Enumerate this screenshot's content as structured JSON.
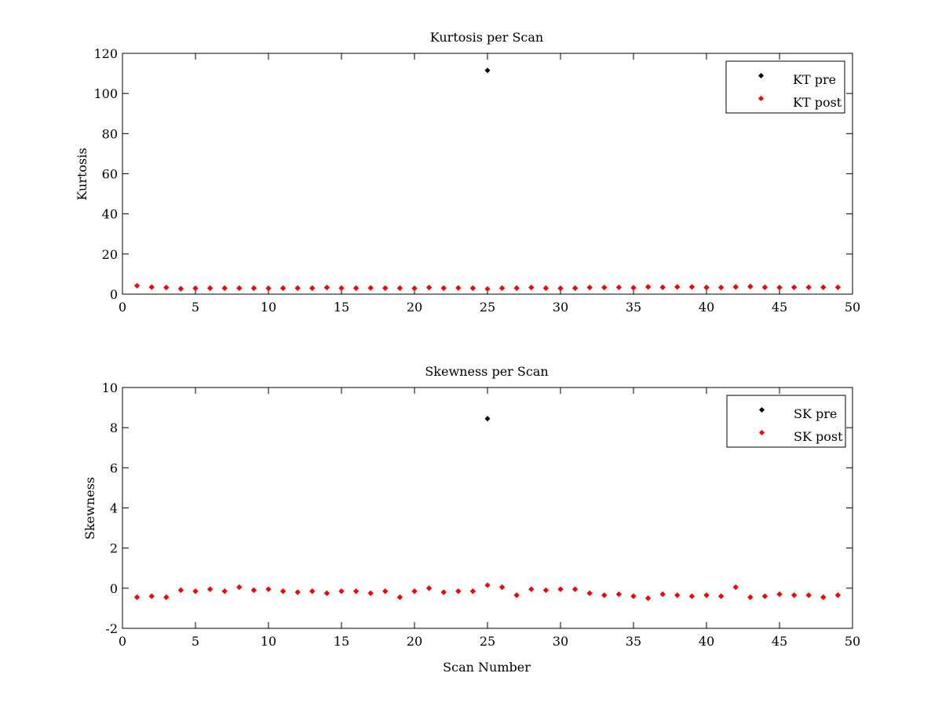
{
  "chart_data": [
    {
      "type": "scatter",
      "title": "Kurtosis per Scan",
      "xlabel": "",
      "ylabel": "Kurtosis",
      "xlim": [
        0,
        50
      ],
      "ylim": [
        0,
        120
      ],
      "xticks": [
        0,
        5,
        10,
        15,
        20,
        25,
        30,
        35,
        40,
        45,
        50
      ],
      "yticks": [
        0,
        20,
        40,
        60,
        80,
        100,
        120
      ],
      "grid": false,
      "legend_position": "top-right",
      "series": [
        {
          "name": "KT pre",
          "color": "#000000",
          "x": [
            1,
            2,
            3,
            4,
            5,
            6,
            7,
            8,
            9,
            10,
            11,
            12,
            13,
            14,
            15,
            16,
            17,
            18,
            19,
            20,
            21,
            22,
            23,
            24,
            25,
            26,
            27,
            28,
            29,
            30,
            31,
            32,
            33,
            34,
            35,
            36,
            37,
            38,
            39,
            40,
            41,
            42,
            43,
            44,
            45,
            46,
            47,
            48,
            49
          ],
          "y": [
            4.2,
            3.5,
            3.3,
            2.7,
            2.9,
            3.0,
            3.0,
            3.0,
            3.0,
            2.9,
            3.0,
            3.0,
            3.0,
            3.3,
            3.0,
            3.0,
            3.1,
            3.0,
            3.0,
            2.9,
            3.3,
            3.0,
            3.1,
            3.0,
            111.5,
            3.0,
            3.0,
            3.3,
            3.0,
            2.9,
            3.0,
            3.3,
            3.3,
            3.4,
            3.2,
            3.6,
            3.4,
            3.6,
            3.6,
            3.3,
            3.3,
            3.6,
            3.8,
            3.4,
            3.3,
            3.4,
            3.4,
            3.4,
            3.4
          ]
        },
        {
          "name": "KT post",
          "color": "#ff0000",
          "x": [
            1,
            2,
            3,
            4,
            5,
            6,
            7,
            8,
            9,
            10,
            11,
            12,
            13,
            14,
            15,
            16,
            17,
            18,
            19,
            20,
            21,
            22,
            23,
            24,
            25,
            26,
            27,
            28,
            29,
            30,
            31,
            32,
            33,
            34,
            35,
            36,
            37,
            38,
            39,
            40,
            41,
            42,
            43,
            44,
            45,
            46,
            47,
            48,
            49
          ],
          "y": [
            4.2,
            3.5,
            3.3,
            2.7,
            2.9,
            3.0,
            3.0,
            3.0,
            3.0,
            2.9,
            3.0,
            3.0,
            3.0,
            3.3,
            3.0,
            3.0,
            3.1,
            3.0,
            3.0,
            2.9,
            3.3,
            3.0,
            3.1,
            3.0,
            2.6,
            3.0,
            3.0,
            3.3,
            3.0,
            2.9,
            3.0,
            3.3,
            3.3,
            3.4,
            3.2,
            3.6,
            3.4,
            3.6,
            3.6,
            3.3,
            3.3,
            3.6,
            3.8,
            3.4,
            3.3,
            3.4,
            3.4,
            3.4,
            3.4
          ]
        }
      ]
    },
    {
      "type": "scatter",
      "title": "Skewness per Scan",
      "xlabel": "Scan Number",
      "ylabel": "Skewness",
      "xlim": [
        0,
        50
      ],
      "ylim": [
        -2,
        10
      ],
      "xticks": [
        0,
        5,
        10,
        15,
        20,
        25,
        30,
        35,
        40,
        45,
        50
      ],
      "yticks": [
        -2,
        0,
        2,
        4,
        6,
        8,
        10
      ],
      "grid": false,
      "legend_position": "top-right",
      "series": [
        {
          "name": "SK pre",
          "color": "#000000",
          "x": [
            1,
            2,
            3,
            4,
            5,
            6,
            7,
            8,
            9,
            10,
            11,
            12,
            13,
            14,
            15,
            16,
            17,
            18,
            19,
            20,
            21,
            22,
            23,
            24,
            25,
            26,
            27,
            28,
            29,
            30,
            31,
            32,
            33,
            34,
            35,
            36,
            37,
            38,
            39,
            40,
            41,
            42,
            43,
            44,
            45,
            46,
            47,
            48,
            49
          ],
          "y": [
            -0.45,
            -0.4,
            -0.45,
            -0.1,
            -0.15,
            -0.05,
            -0.15,
            0.05,
            -0.1,
            -0.05,
            -0.15,
            -0.2,
            -0.15,
            -0.25,
            -0.15,
            -0.15,
            -0.25,
            -0.15,
            -0.45,
            -0.15,
            0.0,
            -0.2,
            -0.15,
            -0.15,
            8.45,
            0.05,
            -0.35,
            -0.05,
            -0.1,
            -0.05,
            -0.05,
            -0.25,
            -0.35,
            -0.3,
            -0.4,
            -0.5,
            -0.3,
            -0.35,
            -0.4,
            -0.35,
            -0.4,
            0.05,
            -0.45,
            -0.4,
            -0.3,
            -0.35,
            -0.35,
            -0.45,
            -0.35
          ]
        },
        {
          "name": "SK post",
          "color": "#ff0000",
          "x": [
            1,
            2,
            3,
            4,
            5,
            6,
            7,
            8,
            9,
            10,
            11,
            12,
            13,
            14,
            15,
            16,
            17,
            18,
            19,
            20,
            21,
            22,
            23,
            24,
            25,
            26,
            27,
            28,
            29,
            30,
            31,
            32,
            33,
            34,
            35,
            36,
            37,
            38,
            39,
            40,
            41,
            42,
            43,
            44,
            45,
            46,
            47,
            48,
            49
          ],
          "y": [
            -0.45,
            -0.4,
            -0.45,
            -0.1,
            -0.15,
            -0.05,
            -0.15,
            0.05,
            -0.1,
            -0.05,
            -0.15,
            -0.2,
            -0.15,
            -0.25,
            -0.15,
            -0.15,
            -0.25,
            -0.15,
            -0.45,
            -0.15,
            0.0,
            -0.2,
            -0.15,
            -0.15,
            0.15,
            0.05,
            -0.35,
            -0.05,
            -0.1,
            -0.05,
            -0.05,
            -0.25,
            -0.35,
            -0.3,
            -0.4,
            -0.5,
            -0.3,
            -0.35,
            -0.4,
            -0.35,
            -0.4,
            0.05,
            -0.45,
            -0.4,
            -0.3,
            -0.35,
            -0.35,
            -0.45,
            -0.35
          ]
        }
      ]
    }
  ]
}
